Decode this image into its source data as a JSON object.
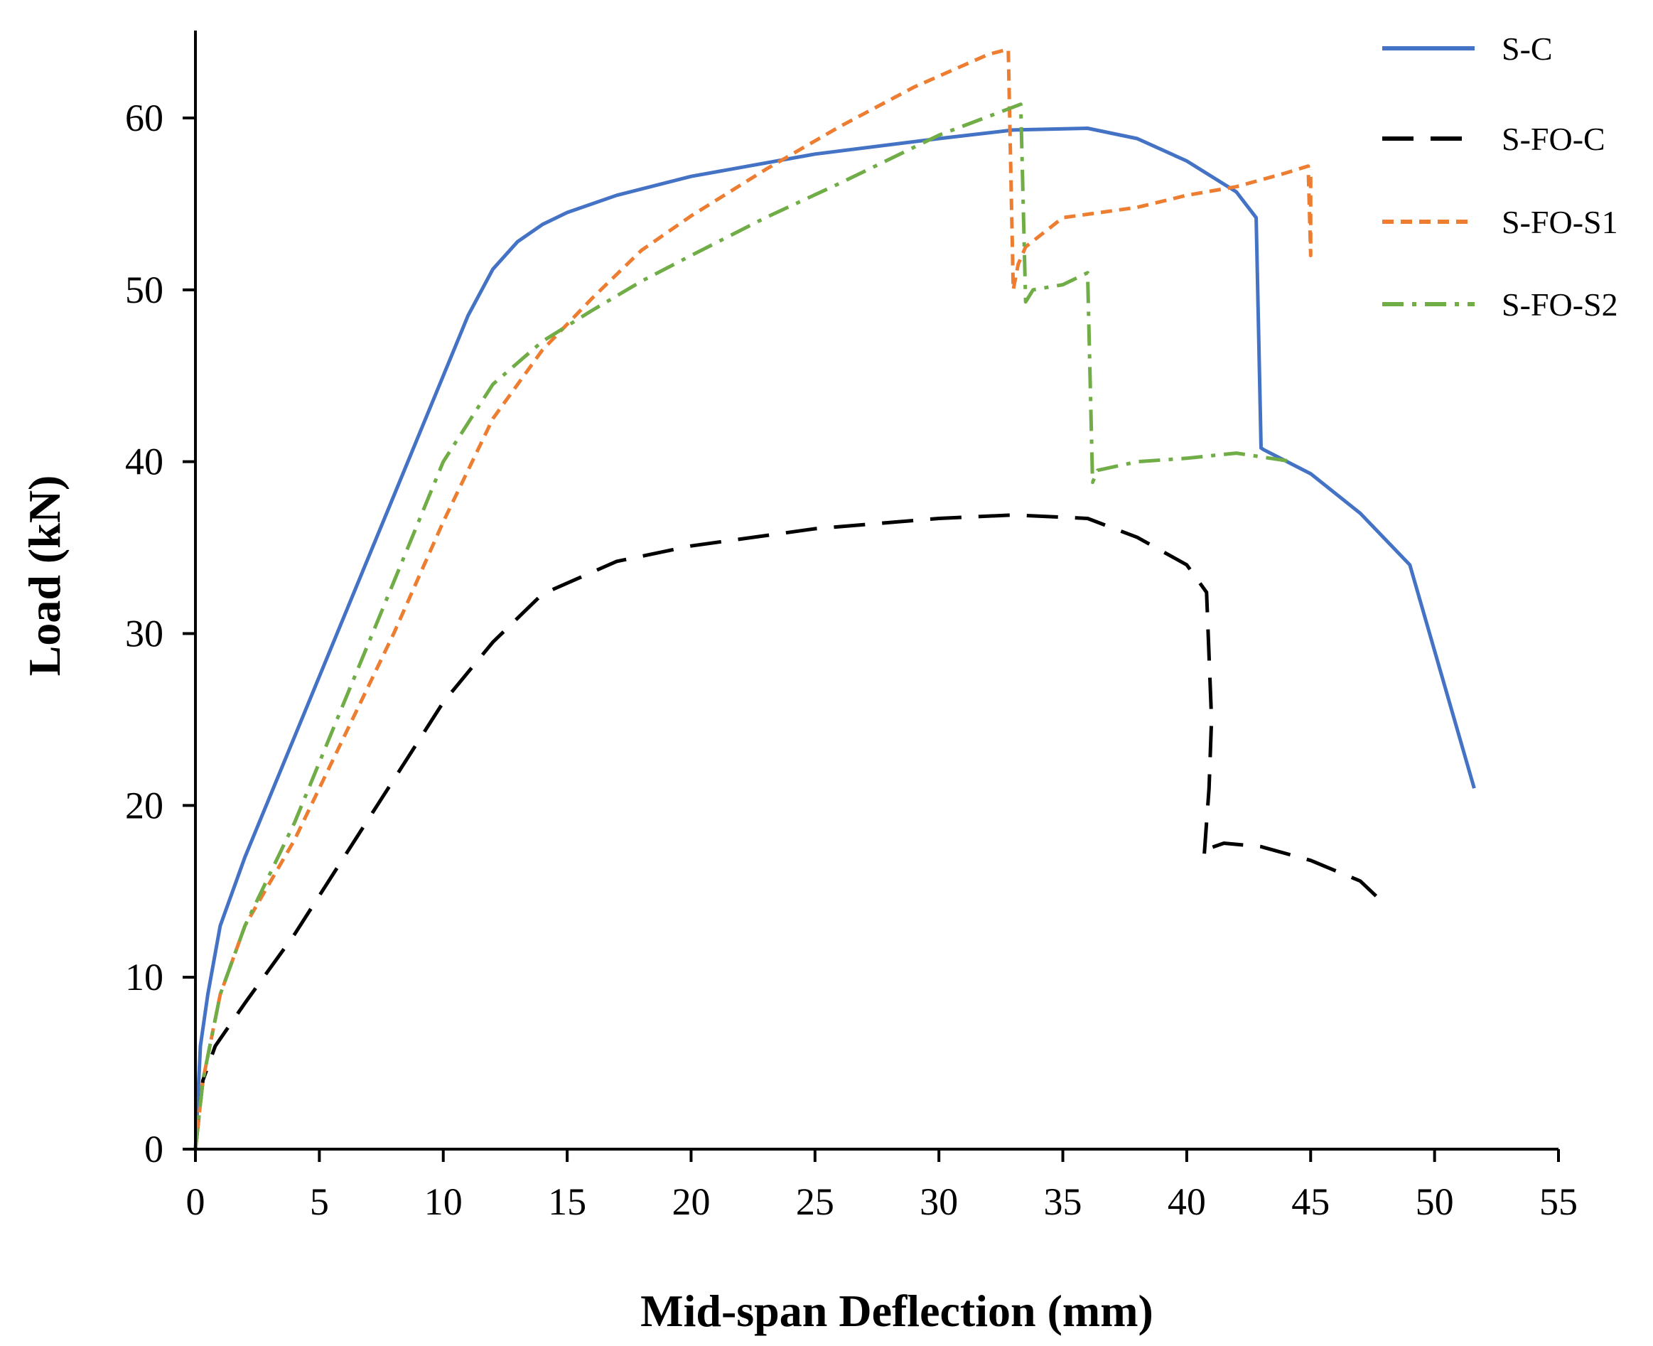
{
  "chart_data": {
    "type": "line",
    "title": "",
    "xlabel": "Mid-span Deflection (mm)",
    "ylabel": "Load (kN)",
    "xlim": [
      0,
      55
    ],
    "ylim": [
      0,
      65
    ],
    "xticks": [
      0,
      5,
      10,
      15,
      20,
      25,
      30,
      35,
      40,
      45,
      50,
      55
    ],
    "yticks": [
      0,
      10,
      20,
      30,
      40,
      50,
      60
    ],
    "grid": false,
    "legend_position": "top-right",
    "series": [
      {
        "name": "S-C",
        "color": "#4472C4",
        "dash": "solid",
        "x": [
          0,
          0.2,
          0.5,
          1,
          2,
          4,
          6,
          8,
          10,
          11,
          12,
          13,
          14,
          15,
          17,
          20,
          25,
          30,
          33,
          36,
          38,
          40,
          42,
          42.8,
          43.0,
          43.1,
          45,
          47,
          49,
          51.6
        ],
        "y": [
          0,
          6,
          9,
          13,
          17,
          24,
          31,
          38,
          45,
          48.5,
          51.2,
          52.8,
          53.8,
          54.5,
          55.5,
          56.6,
          57.9,
          58.8,
          59.3,
          59.4,
          58.8,
          57.5,
          55.7,
          54.2,
          40.8,
          40.7,
          39.3,
          37,
          34,
          21
        ]
      },
      {
        "name": "S-FO-C",
        "color": "#000000",
        "dash": "long-dash",
        "x": [
          0,
          0.3,
          0.8,
          2,
          4,
          6,
          8,
          10,
          12,
          14,
          17,
          20,
          25,
          30,
          33,
          36,
          38,
          40,
          40.8,
          41.0,
          40.9,
          40.7,
          40.9,
          41.5,
          43,
          45,
          47,
          48.1
        ],
        "y": [
          0,
          4,
          6,
          8.5,
          12.5,
          17,
          21.5,
          26,
          29.5,
          32.3,
          34.2,
          35.1,
          36.1,
          36.7,
          36.9,
          36.7,
          35.6,
          34,
          32.4,
          25,
          21,
          17,
          17.5,
          17.8,
          17.6,
          16.8,
          15.6,
          14.1
        ]
      },
      {
        "name": "S-FO-S1",
        "color": "#ED7D31",
        "dash": "short-dash",
        "x": [
          0,
          0.3,
          1,
          2,
          4,
          6,
          8,
          10,
          12,
          14,
          16,
          18,
          20,
          23,
          26,
          29,
          32,
          32.8,
          33.0,
          33.2,
          33.5,
          35,
          38,
          40,
          42,
          44,
          44.9,
          45.0,
          45.0
        ],
        "y": [
          0,
          4,
          9,
          13,
          18,
          24,
          30,
          36.5,
          42.5,
          46.5,
          49.5,
          52.3,
          54.3,
          57,
          59.5,
          61.8,
          63.7,
          64,
          50,
          51.5,
          52.5,
          54.2,
          54.8,
          55.5,
          56,
          56.8,
          57.2,
          52,
          57
        ]
      },
      {
        "name": "S-FO-S2",
        "color": "#70AD47",
        "dash": "dash-dot",
        "x": [
          0,
          0.3,
          1,
          2,
          4,
          6,
          8,
          10,
          12,
          14,
          16,
          18,
          20,
          23,
          26,
          30,
          33.3,
          33.5,
          33.8,
          35,
          36.0,
          36.2,
          36.4,
          38,
          40,
          42,
          44.3
        ],
        "y": [
          0,
          4,
          9,
          13,
          19,
          26,
          33,
          40,
          44.5,
          47,
          48.8,
          50.5,
          52,
          54.2,
          56.2,
          59,
          60.8,
          49.3,
          50,
          50.3,
          51,
          38.8,
          39.5,
          40,
          40.2,
          40.5,
          40
        ]
      }
    ]
  }
}
